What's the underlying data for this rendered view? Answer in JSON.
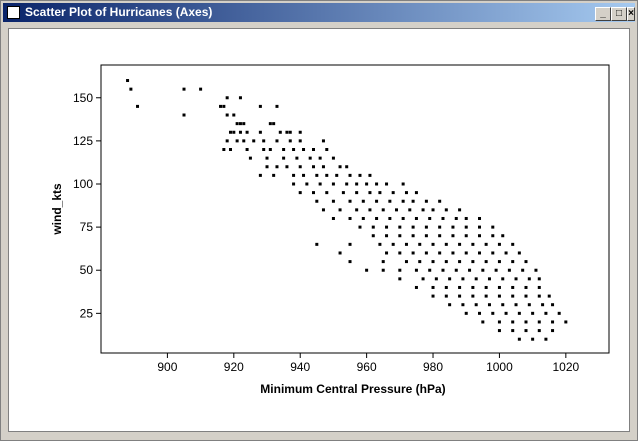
{
  "window_title": "Scatter Plot of Hurricanes (Axes)",
  "chart_data": {
    "type": "scatter",
    "xlabel": "Minimum Central Pressure (hPa)",
    "ylabel": "wind_kts",
    "color": "#000000",
    "xlim": [
      880,
      1033
    ],
    "ylim": [
      2,
      169
    ],
    "xticks": [
      900,
      920,
      940,
      960,
      980,
      1000,
      1020
    ],
    "yticks": [
      25,
      50,
      75,
      100,
      125,
      150
    ],
    "x": [
      888,
      889,
      905,
      910,
      918,
      922,
      891,
      916,
      917,
      928,
      933,
      905,
      918,
      920,
      921,
      922,
      923,
      931,
      932,
      919,
      920,
      922,
      924,
      928,
      934,
      936,
      937,
      940,
      918,
      921,
      923,
      926,
      929,
      933,
      937,
      940,
      947,
      917,
      919,
      924,
      929,
      931,
      935,
      938,
      941,
      944,
      948,
      925,
      930,
      935,
      939,
      943,
      946,
      950,
      930,
      933,
      936,
      940,
      944,
      947,
      952,
      954,
      928,
      932,
      938,
      941,
      945,
      948,
      951,
      955,
      958,
      961,
      938,
      942,
      946,
      950,
      954,
      957,
      960,
      963,
      966,
      971,
      940,
      944,
      948,
      953,
      957,
      961,
      964,
      968,
      972,
      975,
      945,
      950,
      955,
      959,
      963,
      967,
      971,
      974,
      978,
      982,
      947,
      952,
      957,
      961,
      965,
      969,
      973,
      977,
      980,
      984,
      988,
      950,
      955,
      959,
      963,
      967,
      971,
      975,
      979,
      983,
      987,
      990,
      994,
      958,
      962,
      966,
      970,
      974,
      978,
      982,
      986,
      990,
      994,
      998,
      962,
      966,
      970,
      974,
      978,
      982,
      986,
      990,
      994,
      998,
      1001,
      945,
      955,
      964,
      968,
      972,
      976,
      980,
      984,
      988,
      992,
      996,
      1000,
      1004,
      952,
      966,
      970,
      974,
      978,
      982,
      986,
      990,
      994,
      998,
      1002,
      1006,
      955,
      965,
      972,
      976,
      980,
      984,
      988,
      992,
      996,
      1000,
      1004,
      1008,
      960,
      965,
      970,
      975,
      979,
      983,
      987,
      991,
      995,
      999,
      1003,
      1007,
      1011,
      970,
      977,
      981,
      985,
      989,
      993,
      997,
      1001,
      1005,
      1009,
      1012,
      975,
      980,
      984,
      988,
      992,
      996,
      1000,
      1004,
      1008,
      1012,
      980,
      984,
      988,
      992,
      996,
      1000,
      1004,
      1008,
      1012,
      1015,
      985,
      989,
      993,
      997,
      1001,
      1005,
      1009,
      1013,
      1016,
      990,
      994,
      998,
      1002,
      1006,
      1010,
      1014,
      1018,
      995,
      1000,
      1004,
      1008,
      1012,
      1016,
      1020,
      1000,
      1004,
      1008,
      1012,
      1016,
      1006,
      1010,
      1014
    ],
    "values": [
      160,
      155,
      155,
      155,
      150,
      150,
      145,
      145,
      145,
      145,
      145,
      140,
      140,
      140,
      135,
      135,
      135,
      135,
      135,
      130,
      130,
      130,
      130,
      130,
      130,
      130,
      130,
      130,
      125,
      125,
      125,
      125,
      125,
      125,
      125,
      125,
      125,
      120,
      120,
      120,
      120,
      120,
      120,
      120,
      120,
      120,
      120,
      115,
      115,
      115,
      115,
      115,
      115,
      115,
      110,
      110,
      110,
      110,
      110,
      110,
      110,
      110,
      105,
      105,
      105,
      105,
      105,
      105,
      105,
      105,
      105,
      105,
      100,
      100,
      100,
      100,
      100,
      100,
      100,
      100,
      100,
      100,
      95,
      95,
      95,
      95,
      95,
      95,
      95,
      95,
      95,
      95,
      90,
      90,
      90,
      90,
      90,
      90,
      90,
      90,
      90,
      90,
      85,
      85,
      85,
      85,
      85,
      85,
      85,
      85,
      85,
      85,
      85,
      80,
      80,
      80,
      80,
      80,
      80,
      80,
      80,
      80,
      80,
      80,
      80,
      75,
      75,
      75,
      75,
      75,
      75,
      75,
      75,
      75,
      75,
      75,
      70,
      70,
      70,
      70,
      70,
      70,
      70,
      70,
      70,
      70,
      70,
      65,
      65,
      65,
      65,
      65,
      65,
      65,
      65,
      65,
      65,
      65,
      65,
      65,
      60,
      60,
      60,
      60,
      60,
      60,
      60,
      60,
      60,
      60,
      60,
      60,
      55,
      55,
      55,
      55,
      55,
      55,
      55,
      55,
      55,
      55,
      55,
      55,
      50,
      50,
      50,
      50,
      50,
      50,
      50,
      50,
      50,
      50,
      50,
      50,
      50,
      45,
      45,
      45,
      45,
      45,
      45,
      45,
      45,
      45,
      45,
      45,
      40,
      40,
      40,
      40,
      40,
      40,
      40,
      40,
      40,
      40,
      35,
      35,
      35,
      35,
      35,
      35,
      35,
      35,
      35,
      35,
      30,
      30,
      30,
      30,
      30,
      30,
      30,
      30,
      30,
      25,
      25,
      25,
      25,
      25,
      25,
      25,
      25,
      20,
      20,
      20,
      20,
      20,
      20,
      20,
      15,
      15,
      15,
      15,
      15,
      10,
      10,
      10
    ]
  }
}
